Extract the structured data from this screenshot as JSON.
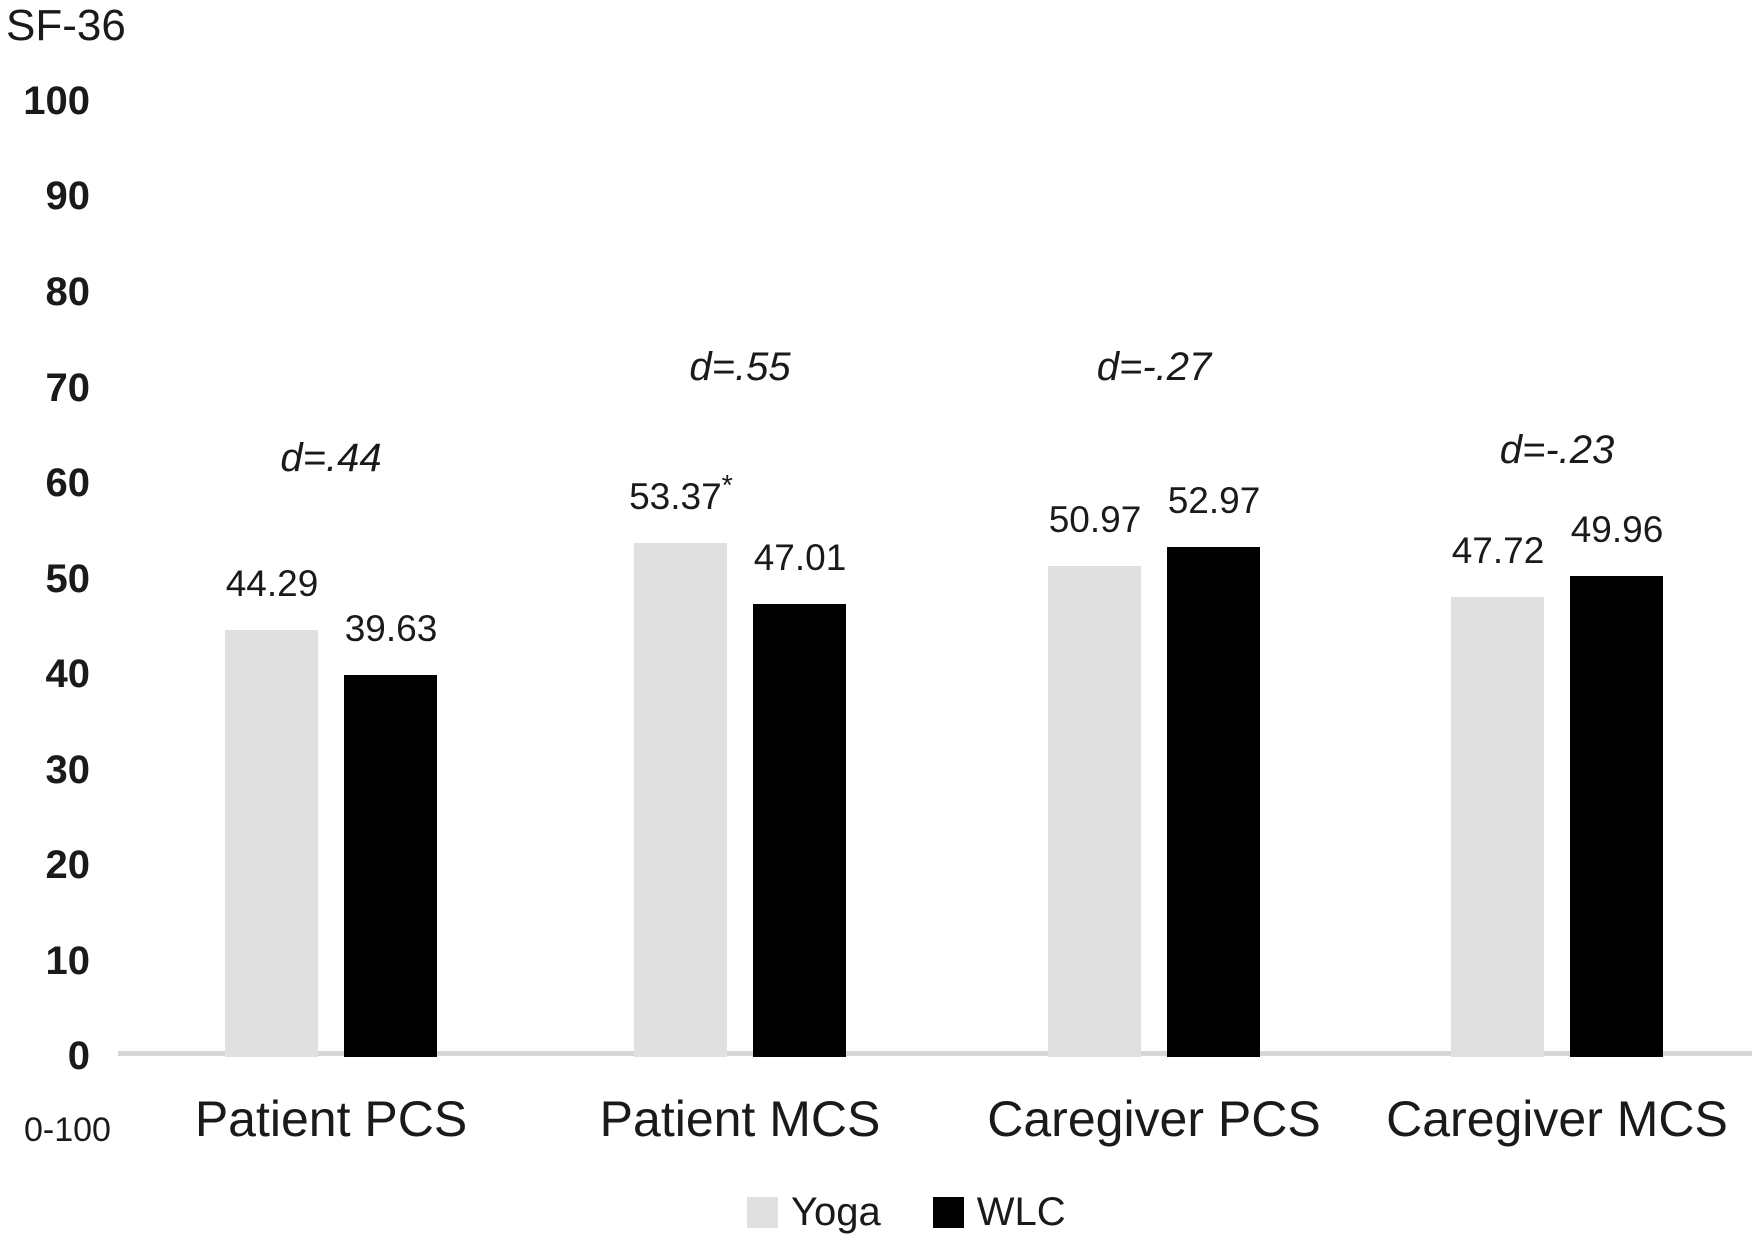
{
  "chart_data": {
    "type": "bar",
    "title": "SF-36",
    "y_axis_note": "0-100",
    "categories": [
      "Patient PCS",
      "Patient MCS",
      "Caregiver PCS",
      "Caregiver MCS"
    ],
    "series": [
      {
        "name": "Yoga",
        "color": "#e0e0e0",
        "values": [
          44.29,
          53.37,
          50.97,
          47.72
        ],
        "value_labels": [
          "44.29",
          "53.37*",
          "50.97",
          "47.72"
        ]
      },
      {
        "name": "WLC",
        "color": "#000000",
        "values": [
          39.63,
          47.01,
          52.97,
          49.96
        ],
        "value_labels": [
          "39.63",
          "47.01",
          "52.97",
          "49.96"
        ]
      }
    ],
    "effect_size_labels": [
      "d=.44",
      "d=.55",
      "d=-.27",
      "d=-.23"
    ],
    "significance_marker": "*",
    "ylim": [
      0,
      100
    ],
    "yticks": [
      0,
      10,
      20,
      30,
      40,
      50,
      60,
      70,
      80,
      90,
      100
    ],
    "grid": false,
    "legend_position": "bottom"
  }
}
